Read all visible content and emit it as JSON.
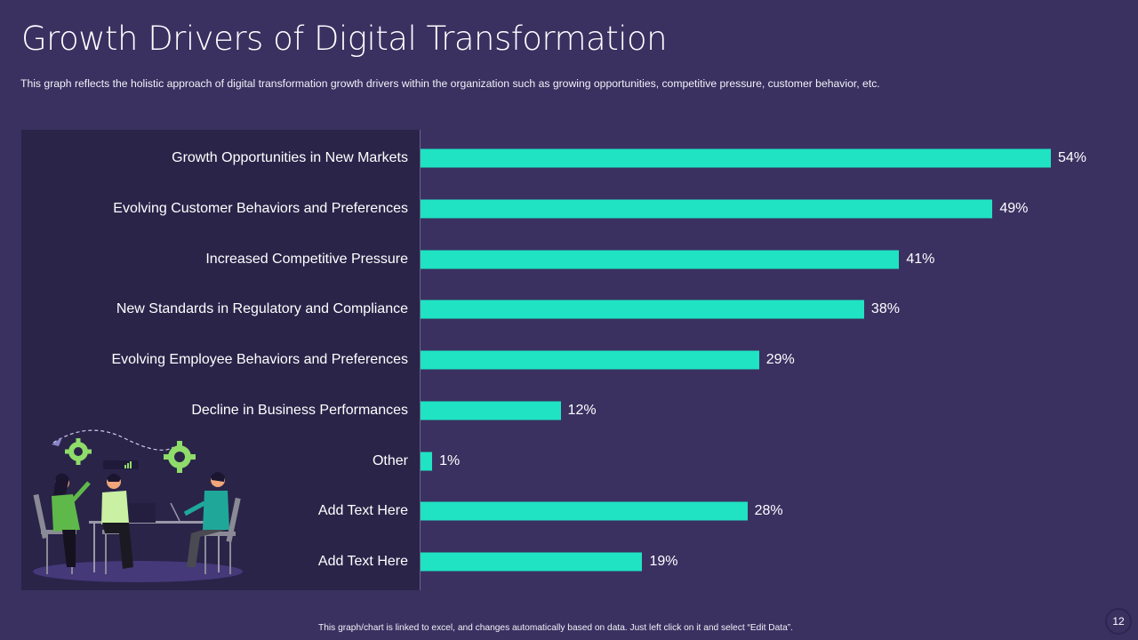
{
  "header": {
    "title": "Growth Drivers of Digital Transformation",
    "subtitle": "This graph reflects the holistic approach of digital transformation growth drivers within the organization such as growing opportunities, competitive pressure, customer behavior, etc."
  },
  "chart_data": {
    "type": "bar",
    "orientation": "horizontal",
    "title": "",
    "xlabel": "",
    "ylabel": "",
    "value_suffix": "%",
    "xlim": [
      0,
      54
    ],
    "grid": false,
    "legend": "none",
    "bar_color": "#1fe3c2",
    "categories": [
      "Growth Opportunities in New Markets",
      "Evolving Customer Behaviors and Preferences",
      "Increased Competitive Pressure",
      "New Standards in Regulatory and Compliance",
      "Evolving Employee Behaviors and Preferences",
      "Decline in Business Performances",
      "Other",
      "Add Text Here",
      "Add Text Here"
    ],
    "values": [
      54,
      49,
      41,
      38,
      29,
      12,
      1,
      28,
      19
    ],
    "data_labels": [
      "54%",
      "49%",
      "41%",
      "38%",
      "29%",
      "12%",
      "1%",
      "28%",
      "19%"
    ]
  },
  "illustration": {
    "description": "team-meeting-icon"
  },
  "footer": {
    "note": "This graph/chart is linked to excel, and changes automatically based on data. Just left click on it and select “Edit Data”.",
    "page_number": "12"
  },
  "colors": {
    "background": "#3a3161",
    "panel": "#2a2449",
    "bar": "#1fe3c2",
    "accent_green": "#8fdc6a"
  }
}
